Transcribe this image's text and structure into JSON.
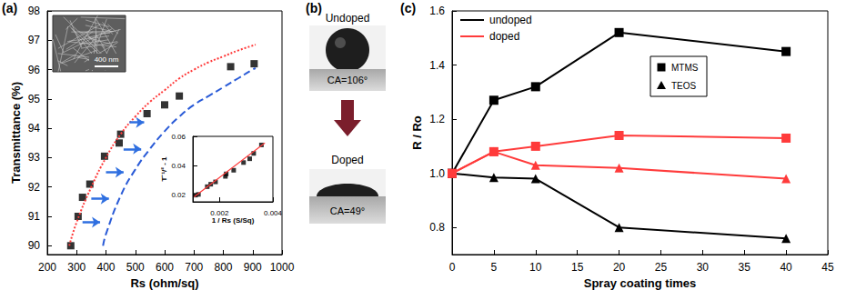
{
  "chart_data": [
    {
      "type": "scatter",
      "title": "(a)",
      "x_label": "Rs (ohm/sq)",
      "y_label": "Transmittance (%)",
      "xlim": [
        200,
        1000
      ],
      "xticks": [
        200,
        300,
        400,
        500,
        600,
        700,
        800,
        900,
        1000
      ],
      "ylim": [
        89.7,
        98
      ],
      "yticks": [
        90,
        91,
        92,
        93,
        94,
        95,
        96,
        97,
        98
      ],
      "grid": false,
      "series": [
        {
          "type": "scatter",
          "color": "#000000",
          "marker": "square",
          "x": [
            280,
            305,
            320,
            345,
            395,
            445,
            450,
            540,
            600,
            650,
            825,
            905
          ],
          "values": [
            90.0,
            91.0,
            91.65,
            92.1,
            93.05,
            93.5,
            93.8,
            94.5,
            94.8,
            95.1,
            96.1,
            96.2
          ]
        },
        {
          "type": "line",
          "color": "#ff3b3b",
          "line_style": "dotted",
          "x": [
            275,
            300,
            350,
            400,
            450,
            500,
            550,
            600,
            650,
            700,
            750,
            800,
            850,
            910
          ],
          "values": [
            90.0,
            90.8,
            92.0,
            93.0,
            93.8,
            94.4,
            94.9,
            95.3,
            95.7,
            96.0,
            96.25,
            96.45,
            96.65,
            96.85
          ]
        },
        {
          "type": "line",
          "color": "#2a5bd7",
          "line_style": "dashed",
          "x": [
            390,
            400,
            450,
            500,
            550,
            600,
            650,
            700,
            750,
            800,
            850,
            900,
            910
          ],
          "values": [
            90.0,
            90.4,
            91.7,
            92.6,
            93.3,
            93.9,
            94.4,
            94.8,
            95.1,
            95.4,
            95.7,
            96.0,
            96.05
          ]
        }
      ],
      "arrows": {
        "color": "#2f6fe0",
        "y": [
          94.2,
          93.3,
          92.5,
          91.6,
          90.8
        ],
        "x_start": [
          480,
          460,
          400,
          350,
          320
        ],
        "x_end": [
          530,
          520,
          460,
          410,
          380
        ]
      },
      "image_label": "400 nm"
    },
    {
      "type": "scatter",
      "x_label": "1 / Rs (S/Sq)",
      "y_label": "T⁻¹/² - 1",
      "xlim": [
        0.001,
        0.004
      ],
      "xticks": [
        0.002,
        0.004
      ],
      "ylim": [
        0.015,
        0.06
      ],
      "yticks": [
        0.02,
        0.04,
        0.06
      ],
      "grid": false,
      "series": [
        {
          "type": "scatter",
          "color": "#000000",
          "marker": "square",
          "x": [
            0.00357,
            0.00328,
            0.00313,
            0.0029,
            0.00253,
            0.00225,
            0.00222,
            0.00185,
            0.00167,
            0.00154,
            0.00121,
            0.0011
          ],
          "values": [
            0.0541,
            0.0483,
            0.0446,
            0.042,
            0.0367,
            0.0342,
            0.0325,
            0.0287,
            0.0271,
            0.0254,
            0.0201,
            0.0196
          ]
        },
        {
          "type": "line",
          "color": "#ff3b3b",
          "line_style": "solid",
          "x": [
            0.00105,
            0.0037
          ],
          "values": [
            0.0185,
            0.0555
          ]
        }
      ]
    },
    {
      "type": "line",
      "title": "(c)",
      "x_label": "Spray coating times",
      "y_label": "R / Ro",
      "x": [
        0,
        5,
        10,
        20,
        40
      ],
      "xlim": [
        0,
        45
      ],
      "xticks": [
        0,
        5,
        10,
        15,
        20,
        25,
        30,
        35,
        40,
        45
      ],
      "ylim": [
        0.7,
        1.6
      ],
      "yticks": [
        0.8,
        {
          "value": 1,
          "label": "1.0"
        },
        1.2,
        1.4,
        1.6
      ],
      "grid": false,
      "legend": "upper left",
      "series": [
        {
          "name": "undoped",
          "marker_name": "MTMS",
          "marker": "square",
          "color": "#000000",
          "values": [
            1.0,
            1.27,
            1.32,
            1.52,
            1.45
          ]
        },
        {
          "name": "undoped",
          "marker_name": "TEOS",
          "marker": "triangle",
          "color": "#000000",
          "values": [
            1.0,
            0.985,
            0.98,
            0.8,
            0.76
          ]
        },
        {
          "name": "doped",
          "marker_name": "MTMS",
          "marker": "square",
          "color": "#ff3b3b",
          "values": [
            1.0,
            1.08,
            1.1,
            1.14,
            1.13
          ]
        },
        {
          "name": "doped",
          "marker_name": "TEOS",
          "marker": "triangle",
          "color": "#ff3b3b",
          "values": [
            1.0,
            1.08,
            1.03,
            1.02,
            0.98
          ]
        }
      ]
    }
  ],
  "panel_b": {
    "title": "(b)",
    "top_label": "Undoped",
    "top_angle": "CA=106°",
    "bottom_label": "Doped",
    "bottom_angle": "CA=49°"
  }
}
